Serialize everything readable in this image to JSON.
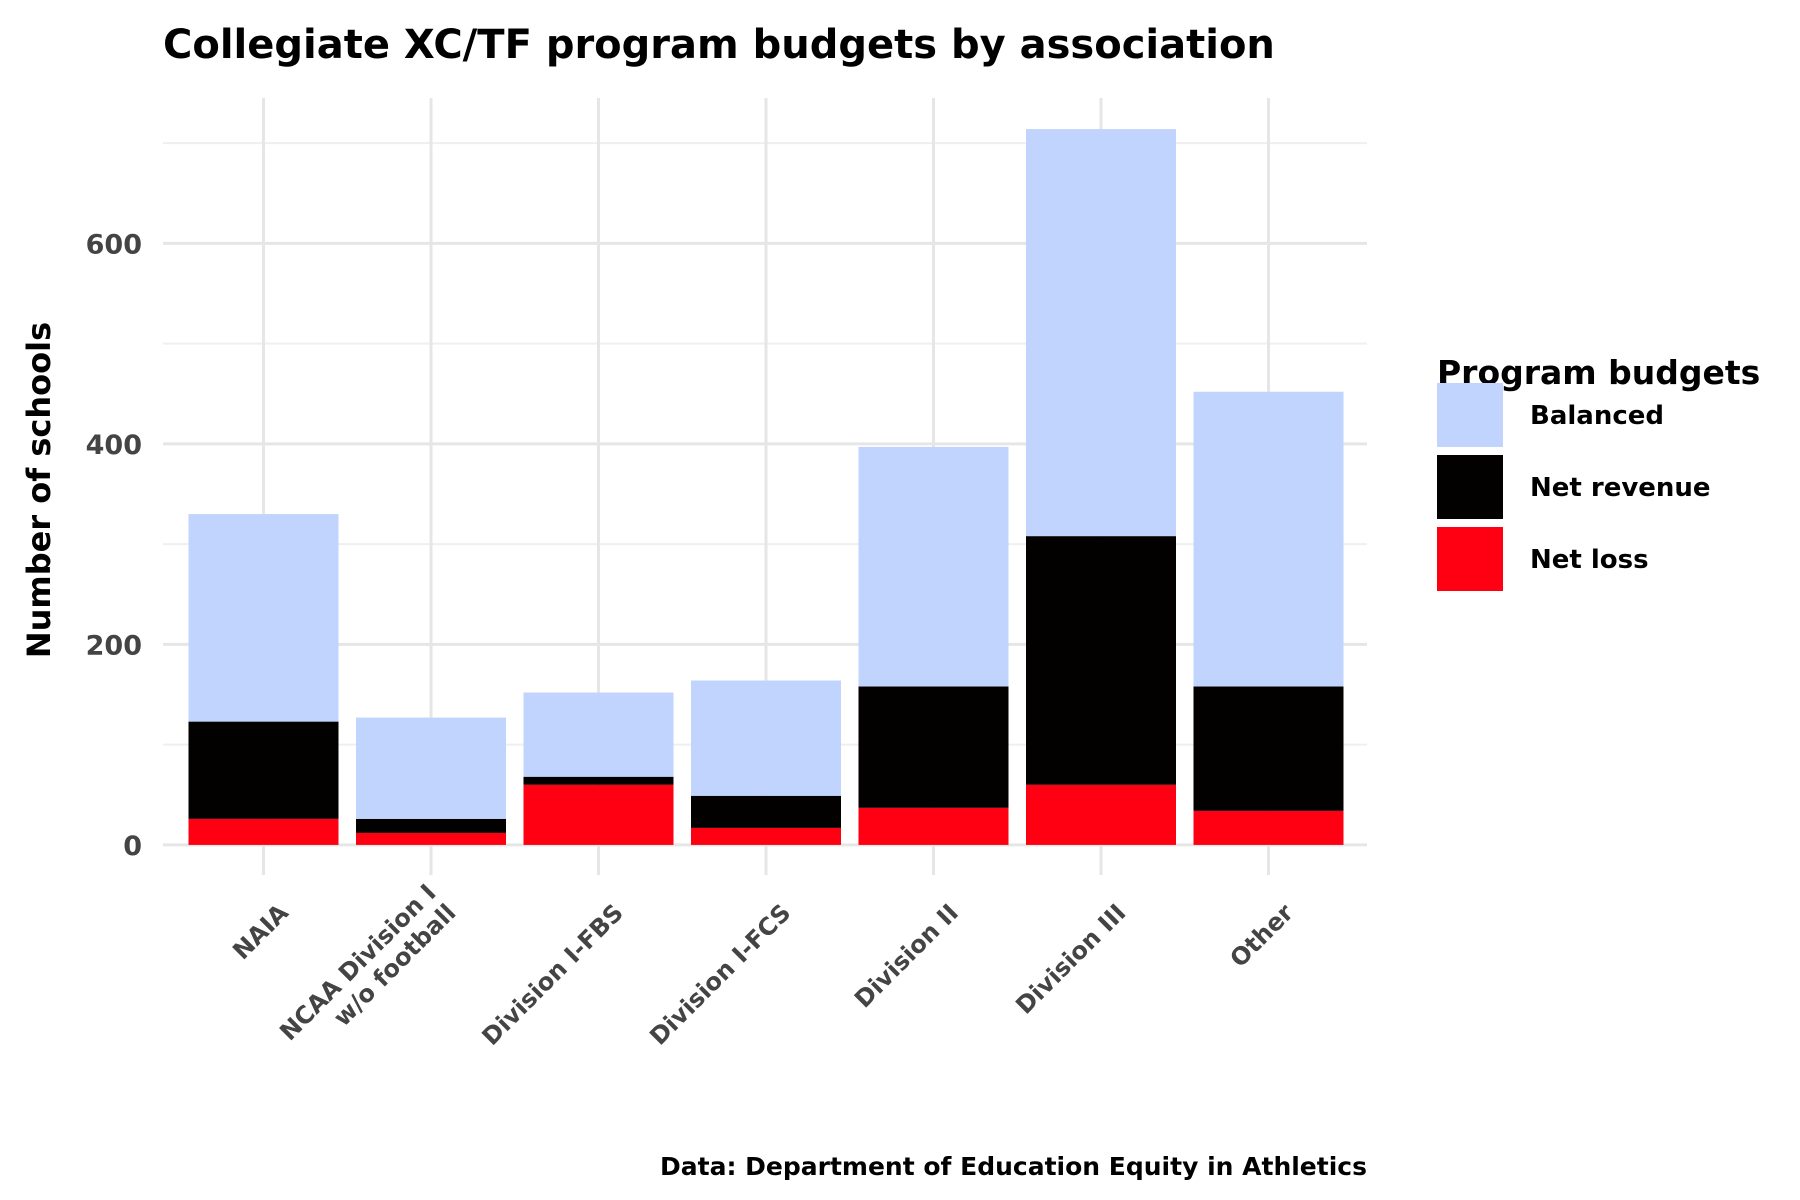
{
  "chart_data": {
    "type": "bar",
    "stacked": true,
    "title": "Collegiate XC/TF program budgets by association",
    "xlabel": "",
    "ylabel": "Number of schools",
    "caption": "Data: Department of Education Equity in Athletics",
    "categories": [
      "NAIA",
      "NCAA Division I\nw/o football",
      "Division I-FBS",
      "Division I-FCS",
      "Division II",
      "Division III",
      "Other"
    ],
    "series": [
      {
        "name": "Net loss",
        "color": "#ff0013",
        "values": [
          26,
          12,
          60,
          17,
          37,
          60,
          34
        ]
      },
      {
        "name": "Net revenue",
        "color": "#030000",
        "values": [
          97,
          14,
          8,
          32,
          121,
          248,
          124
        ]
      },
      {
        "name": "Balanced",
        "color": "#c1d4fd",
        "values": [
          207,
          101,
          84,
          115,
          239,
          406,
          294
        ]
      }
    ],
    "ylim": [
      -30,
      745
    ],
    "yticks": [
      0,
      200,
      400,
      600
    ],
    "grid": true,
    "legend": {
      "title": "Program budgets",
      "position": "right",
      "entries": [
        "Balanced",
        "Net revenue",
        "Net loss"
      ]
    }
  }
}
